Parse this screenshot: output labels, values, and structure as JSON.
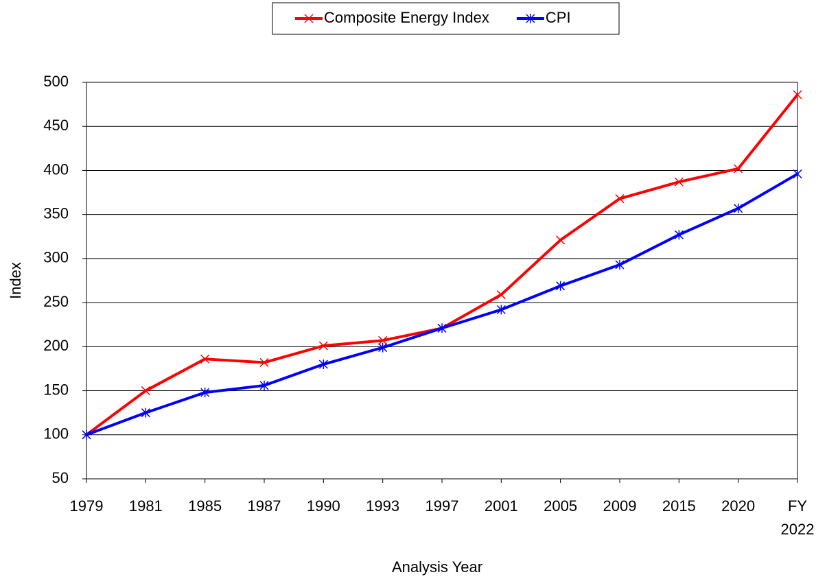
{
  "chart_data": {
    "type": "line",
    "x_label": "Analysis Year",
    "y_label": "Index",
    "categories": [
      "1979",
      "1981",
      "1985",
      "1987",
      "1990",
      "1993",
      "1997",
      "2001",
      "2005",
      "2009",
      "2015",
      "2020",
      "FY\n2022"
    ],
    "series": [
      {
        "name": "Composite Energy Index",
        "color": "#ff0000",
        "marker": "x",
        "values": [
          100,
          150,
          186,
          182,
          201,
          207,
          221,
          259,
          321,
          368,
          387,
          402,
          486
        ]
      },
      {
        "name": "CPI",
        "color": "#0000ff",
        "marker": "*",
        "values": [
          100,
          125,
          148,
          156,
          180,
          199,
          221,
          242,
          269,
          293,
          327,
          357,
          396
        ]
      }
    ],
    "ylim": [
      50,
      500
    ],
    "yticks": [
      50,
      100,
      150,
      200,
      250,
      300,
      350,
      400,
      450,
      500
    ],
    "grid": true,
    "legend": "top"
  }
}
